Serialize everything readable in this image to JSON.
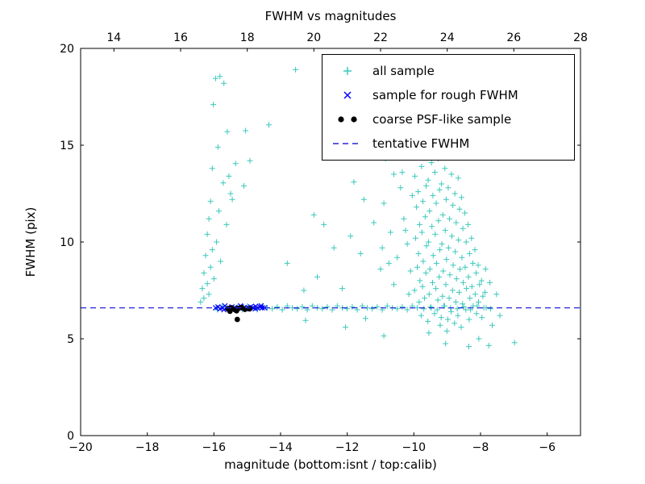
{
  "chart_data": {
    "type": "scatter",
    "title": "FWHM vs magnitudes",
    "xlabel": "magnitude (bottom:isnt / top:calib)",
    "ylabel": "FWHM (pix)",
    "xlim": [
      -20,
      -5
    ],
    "ylim": [
      0,
      20
    ],
    "grid": false,
    "legend_position": "upper right",
    "x_ticks": {
      "values": [
        -20,
        -18,
        -16,
        -14,
        -12,
        -10,
        -8,
        -6
      ],
      "labels": [
        "−20",
        "−18",
        "−16",
        "−14",
        "−12",
        "−10",
        "−8",
        "−6"
      ]
    },
    "top_ticks": {
      "values": [
        14,
        16,
        18,
        20,
        22,
        24,
        26,
        28
      ],
      "labels": [
        "14",
        "16",
        "18",
        "20",
        "22",
        "24",
        "26",
        "28"
      ],
      "offset": 33
    },
    "y_ticks": {
      "values": [
        0,
        5,
        10,
        15,
        20
      ],
      "labels": [
        "0",
        "5",
        "10",
        "15",
        "20"
      ]
    },
    "series": [
      {
        "name": "all sample",
        "marker": "plus",
        "color": "#3cc8bc",
        "points": [
          [
            -15.82,
            18.55
          ],
          [
            -15.95,
            18.45
          ],
          [
            -15.7,
            18.2
          ],
          [
            -16.02,
            17.1
          ],
          [
            -15.6,
            15.7
          ],
          [
            -15.88,
            14.9
          ],
          [
            -16.05,
            13.8
          ],
          [
            -15.72,
            13.05
          ],
          [
            -15.5,
            12.5
          ],
          [
            -16.1,
            12.1
          ],
          [
            -15.85,
            11.6
          ],
          [
            -16.15,
            11.2
          ],
          [
            -15.62,
            10.9
          ],
          [
            -16.2,
            10.4
          ],
          [
            -15.92,
            10
          ],
          [
            -16.05,
            9.6
          ],
          [
            -16.25,
            9.3
          ],
          [
            -15.8,
            9
          ],
          [
            -16.1,
            8.7
          ],
          [
            -16.3,
            8.4
          ],
          [
            -16,
            8.1
          ],
          [
            -16.2,
            7.85
          ],
          [
            -16.35,
            7.6
          ],
          [
            -16.15,
            7.3
          ],
          [
            -16.3,
            7.1
          ],
          [
            -16.4,
            6.9
          ],
          [
            -15.55,
            13.4
          ],
          [
            -15.35,
            14.05
          ],
          [
            -15.45,
            12.2
          ],
          [
            -15.05,
            15.75
          ],
          [
            -14.92,
            14.2
          ],
          [
            -15.1,
            12.9
          ],
          [
            -13.55,
            18.9
          ],
          [
            -11.35,
            18.85
          ],
          [
            -12.6,
            14.55
          ],
          [
            -13,
            11.4
          ],
          [
            -12.4,
            9.7
          ],
          [
            -13.8,
            8.9
          ],
          [
            -12.9,
            8.2
          ],
          [
            -13.3,
            7.5
          ],
          [
            -12.15,
            7.6
          ],
          [
            -11.8,
            13.1
          ],
          [
            -11.5,
            12.2
          ],
          [
            -11.2,
            11
          ],
          [
            -11.6,
            9.4
          ],
          [
            -11,
            8.6
          ],
          [
            -11.9,
            10.3
          ],
          [
            -12.7,
            10.9
          ],
          [
            -14.35,
            16.05
          ],
          [
            -10.85,
            14.3
          ],
          [
            -10.6,
            13.5
          ],
          [
            -10.4,
            12.8
          ],
          [
            -10.9,
            12
          ],
          [
            -10.3,
            11.2
          ],
          [
            -10.7,
            10.5
          ],
          [
            -10.2,
            9.9
          ],
          [
            -10.5,
            9.2
          ],
          [
            -10.1,
            8.5
          ],
          [
            -10.6,
            7.8
          ],
          [
            -10.15,
            7.3
          ],
          [
            -10.95,
            9.7
          ],
          [
            -10.75,
            8.9
          ],
          [
            -10.35,
            13.6
          ],
          [
            -10.05,
            12.4
          ],
          [
            -10.25,
            10.6
          ],
          [
            -9.9,
            16.3
          ],
          [
            -9.4,
            15.6
          ],
          [
            -9.6,
            14.8
          ],
          [
            -11.05,
            15.4
          ],
          [
            -9.97,
            13.4
          ],
          [
            -9.92,
            11.8
          ],
          [
            -9.95,
            10.2
          ],
          [
            -9.9,
            8.7
          ],
          [
            -9.98,
            7.5
          ],
          [
            -9.87,
            12.6
          ],
          [
            -9.83,
            10.9
          ],
          [
            -9.86,
            9.4
          ],
          [
            -9.82,
            8
          ],
          [
            -9.84,
            6.9
          ],
          [
            -9.77,
            13.9
          ],
          [
            -9.73,
            12.1
          ],
          [
            -9.76,
            10.5
          ],
          [
            -9.72,
            9
          ],
          [
            -9.74,
            7.7
          ],
          [
            -9.78,
            6.2
          ],
          [
            -9.67,
            14.4
          ],
          [
            -9.63,
            12.9
          ],
          [
            -9.66,
            11.3
          ],
          [
            -9.62,
            9.8
          ],
          [
            -9.64,
            8.4
          ],
          [
            -9.68,
            7.1
          ],
          [
            -9.57,
            13.2
          ],
          [
            -9.53,
            11.6
          ],
          [
            -9.56,
            10
          ],
          [
            -9.52,
            8.6
          ],
          [
            -9.54,
            7.3
          ],
          [
            -9.58,
            5.9
          ],
          [
            -9.47,
            14.1
          ],
          [
            -9.43,
            12.4
          ],
          [
            -9.46,
            10.8
          ],
          [
            -9.42,
            9.3
          ],
          [
            -9.44,
            7.9
          ],
          [
            -9.48,
            6.6
          ],
          [
            -9.37,
            13.6
          ],
          [
            -9.33,
            12
          ],
          [
            -9.36,
            10.4
          ],
          [
            -9.32,
            8.9
          ],
          [
            -9.34,
            7.6
          ],
          [
            -9.38,
            6.3
          ],
          [
            -9.27,
            14.3
          ],
          [
            -9.23,
            12.7
          ],
          [
            -9.26,
            11.1
          ],
          [
            -9.22,
            9.6
          ],
          [
            -9.24,
            8.2
          ],
          [
            -9.28,
            7
          ],
          [
            -9.21,
            5.7
          ],
          [
            -9.17,
            13
          ],
          [
            -9.13,
            11.4
          ],
          [
            -9.16,
            9.9
          ],
          [
            -9.12,
            8.5
          ],
          [
            -9.14,
            7.2
          ],
          [
            -9.18,
            6.1
          ],
          [
            -9.07,
            13.8
          ],
          [
            -9.03,
            12.2
          ],
          [
            -9.06,
            10.6
          ],
          [
            -9.02,
            9.1
          ],
          [
            -9.04,
            7.8
          ],
          [
            -9.08,
            6.7
          ],
          [
            -9.01,
            5.4
          ],
          [
            -8.97,
            12.8
          ],
          [
            -8.93,
            11.2
          ],
          [
            -8.96,
            9.7
          ],
          [
            -8.92,
            8.3
          ],
          [
            -8.94,
            7.1
          ],
          [
            -8.98,
            6
          ],
          [
            -8.87,
            13.5
          ],
          [
            -8.83,
            11.9
          ],
          [
            -8.86,
            10.3
          ],
          [
            -8.82,
            8.8
          ],
          [
            -8.84,
            7.5
          ],
          [
            -8.88,
            6.4
          ],
          [
            -8.77,
            12.5
          ],
          [
            -8.73,
            11
          ],
          [
            -8.76,
            9.5
          ],
          [
            -8.72,
            8.1
          ],
          [
            -8.74,
            6.9
          ],
          [
            -8.78,
            5.8
          ],
          [
            -8.67,
            13.3
          ],
          [
            -8.63,
            11.7
          ],
          [
            -8.66,
            10.1
          ],
          [
            -8.62,
            8.6
          ],
          [
            -8.64,
            7.4
          ],
          [
            -8.68,
            6.2
          ],
          [
            -8.57,
            12.3
          ],
          [
            -8.53,
            10.7
          ],
          [
            -8.56,
            9.2
          ],
          [
            -8.52,
            7.9
          ],
          [
            -8.54,
            6.8
          ],
          [
            -8.58,
            5.6
          ],
          [
            -8.47,
            11.5
          ],
          [
            -8.43,
            10
          ],
          [
            -8.46,
            8.7
          ],
          [
            -8.42,
            7.6
          ],
          [
            -8.44,
            6.5
          ],
          [
            -8.37,
            10.9
          ],
          [
            -8.33,
            9.4
          ],
          [
            -8.36,
            8.2
          ],
          [
            -8.32,
            7.1
          ],
          [
            -8.34,
            6
          ],
          [
            -8.27,
            10.2
          ],
          [
            -8.23,
            8.9
          ],
          [
            -8.26,
            7.7
          ],
          [
            -8.22,
            6.7
          ],
          [
            -8.17,
            9.6
          ],
          [
            -8.13,
            8.4
          ],
          [
            -8.16,
            7.3
          ],
          [
            -8.12,
            6.3
          ],
          [
            -8.07,
            8.8
          ],
          [
            -8.03,
            7.8
          ],
          [
            -8.06,
            6.9
          ],
          [
            -7.97,
            8
          ],
          [
            -7.93,
            7.2
          ],
          [
            -7.96,
            6.1
          ],
          [
            -7.87,
            7.4
          ],
          [
            -7.83,
            6.6
          ],
          [
            -15.9,
            6.5
          ],
          [
            -15.75,
            6.7
          ],
          [
            -15.6,
            6.6
          ],
          [
            -15.45,
            6.55
          ],
          [
            -15.3,
            6.65
          ],
          [
            -15.15,
            6.5
          ],
          [
            -15,
            6.7
          ],
          [
            -14.85,
            6.6
          ],
          [
            -14.7,
            6.5
          ],
          [
            -14.55,
            6.7
          ],
          [
            -14.4,
            6.6
          ],
          [
            -14.25,
            6.55
          ],
          [
            -14.1,
            6.65
          ],
          [
            -13.95,
            6.5
          ],
          [
            -13.8,
            6.7
          ],
          [
            -13.65,
            6.6
          ],
          [
            -13.5,
            6.55
          ],
          [
            -13.35,
            6.65
          ],
          [
            -13.2,
            6.5
          ],
          [
            -13.05,
            6.7
          ],
          [
            -12.9,
            6.6
          ],
          [
            -12.75,
            6.55
          ],
          [
            -12.6,
            6.65
          ],
          [
            -12.45,
            6.5
          ],
          [
            -12.3,
            6.7
          ],
          [
            -12.15,
            6.6
          ],
          [
            -12,
            6.55
          ],
          [
            -11.85,
            6.65
          ],
          [
            -11.7,
            6.5
          ],
          [
            -11.55,
            6.7
          ],
          [
            -11.4,
            6.6
          ],
          [
            -11.25,
            6.55
          ],
          [
            -11.1,
            6.65
          ],
          [
            -10.95,
            6.5
          ],
          [
            -10.8,
            6.7
          ],
          [
            -10.65,
            6.6
          ],
          [
            -10.5,
            6.55
          ],
          [
            -10.35,
            6.65
          ],
          [
            -10.2,
            6.5
          ],
          [
            -10.05,
            6.7
          ],
          [
            -9.9,
            6.6
          ],
          [
            -9.7,
            6.55
          ],
          [
            -9.5,
            6.65
          ],
          [
            -9.3,
            6.5
          ],
          [
            -9.1,
            6.7
          ],
          [
            -8.9,
            6.6
          ],
          [
            -8.7,
            6.55
          ],
          [
            -8.5,
            6.65
          ],
          [
            -8.3,
            6.5
          ],
          [
            -8.1,
            6.7
          ],
          [
            -7.9,
            6.6
          ],
          [
            -7.7,
            6.55
          ],
          [
            -13.25,
            5.95
          ],
          [
            -12.05,
            5.6
          ],
          [
            -10.9,
            5.15
          ],
          [
            -9.05,
            4.75
          ],
          [
            -8.35,
            4.6
          ],
          [
            -11.45,
            6.05
          ],
          [
            -9.55,
            5.3
          ],
          [
            -8.05,
            5
          ],
          [
            -7.75,
            4.65
          ],
          [
            -7.72,
            7.9
          ],
          [
            -7.52,
            7.3
          ],
          [
            -7.42,
            6.2
          ],
          [
            -6.98,
            4.8
          ],
          [
            -7.85,
            8.6
          ],
          [
            -7.65,
            5.7
          ]
        ]
      },
      {
        "name": "sample for rough FWHM",
        "marker": "x",
        "color": "#0000ff",
        "points": [
          [
            -15.95,
            6.6
          ],
          [
            -15.88,
            6.65
          ],
          [
            -15.81,
            6.55
          ],
          [
            -15.74,
            6.6
          ],
          [
            -15.67,
            6.7
          ],
          [
            -15.6,
            6.6
          ],
          [
            -15.53,
            6.55
          ],
          [
            -15.46,
            6.65
          ],
          [
            -15.39,
            6.6
          ],
          [
            -15.32,
            6.55
          ],
          [
            -15.25,
            6.6
          ],
          [
            -15.18,
            6.65
          ],
          [
            -15.11,
            6.6
          ],
          [
            -15.04,
            6.55
          ],
          [
            -14.97,
            6.6
          ],
          [
            -14.9,
            6.65
          ],
          [
            -14.83,
            6.6
          ],
          [
            -14.76,
            6.55
          ],
          [
            -14.69,
            6.6
          ],
          [
            -14.62,
            6.65
          ],
          [
            -14.55,
            6.6
          ],
          [
            -14.48,
            6.6
          ],
          [
            -14.58,
            6.7
          ],
          [
            -15.7,
            6.5
          ],
          [
            -15.2,
            6.7
          ],
          [
            -14.75,
            6.68
          ]
        ]
      },
      {
        "name": "coarse PSF-like sample",
        "marker": "circle",
        "color": "#000000",
        "points": [
          [
            -15.58,
            6.55
          ],
          [
            -15.47,
            6.6
          ],
          [
            -15.37,
            6.5
          ],
          [
            -15.27,
            6.57
          ],
          [
            -15.17,
            6.62
          ],
          [
            -15.07,
            6.52
          ],
          [
            -15.32,
            6.45
          ],
          [
            -15.52,
            6.42
          ],
          [
            -15.3,
            6.0
          ],
          [
            -14.93,
            6.55
          ]
        ]
      },
      {
        "name": "tentative FWHM",
        "marker": "dashed-line",
        "color": "#2525d8",
        "y": 6.6
      }
    ]
  }
}
